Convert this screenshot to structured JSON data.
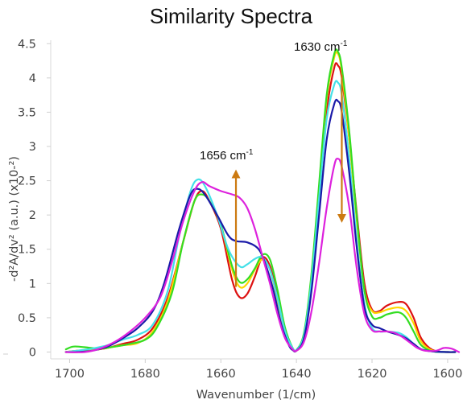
{
  "chart_data": {
    "type": "line",
    "title": "Similarity Spectra",
    "xlabel": "Wavenumber (1/cm)",
    "ylabel": "-d²A/dv² (a.u.) (x10-²)",
    "xlim": [
      1705,
      1597
    ],
    "ylim": [
      -0.1,
      4.55
    ],
    "x_reversed": true,
    "grid": false,
    "legend": "none",
    "xticks": [
      1700,
      1680,
      1660,
      1640,
      1620,
      1600
    ],
    "yticks": [
      0,
      0.5,
      1,
      1.5,
      2,
      2.5,
      3,
      3.5,
      4,
      4.5
    ],
    "ytick_labels": [
      "0",
      "0.5",
      "1",
      "1.5",
      "2",
      "2.5",
      "3",
      "3.5",
      "4",
      "4.5"
    ],
    "series": [
      {
        "color": "#dd1111",
        "points": [
          [
            1701,
            0
          ],
          [
            1698,
            0.02
          ],
          [
            1694,
            0.03
          ],
          [
            1690,
            0.06
          ],
          [
            1686,
            0.12
          ],
          [
            1682,
            0.18
          ],
          [
            1678,
            0.35
          ],
          [
            1674,
            0.8
          ],
          [
            1670,
            1.6
          ],
          [
            1667,
            2.2
          ],
          [
            1665,
            2.35
          ],
          [
            1663,
            2.2
          ],
          [
            1660,
            1.8
          ],
          [
            1657,
            1.05
          ],
          [
            1655,
            0.8
          ],
          [
            1653,
            0.85
          ],
          [
            1651,
            1.1
          ],
          [
            1649,
            1.38
          ],
          [
            1647,
            1.25
          ],
          [
            1645,
            0.8
          ],
          [
            1643,
            0.3
          ],
          [
            1641,
            0.05
          ],
          [
            1640,
            0.02
          ],
          [
            1638,
            0.2
          ],
          [
            1636,
            1.0
          ],
          [
            1634,
            2.2
          ],
          [
            1632,
            3.5
          ],
          [
            1630,
            4.15
          ],
          [
            1629,
            4.18
          ],
          [
            1628,
            4.0
          ],
          [
            1626,
            3.1
          ],
          [
            1624,
            2.0
          ],
          [
            1622,
            1.0
          ],
          [
            1620,
            0.62
          ],
          [
            1618,
            0.6
          ],
          [
            1616,
            0.68
          ],
          [
            1613,
            0.73
          ],
          [
            1611,
            0.7
          ],
          [
            1609,
            0.5
          ],
          [
            1607,
            0.2
          ],
          [
            1604,
            0.03
          ],
          [
            1600,
            0
          ],
          [
            1598,
            0
          ]
        ]
      },
      {
        "color": "#ffd500",
        "points": [
          [
            1701,
            0
          ],
          [
            1698,
            0.02
          ],
          [
            1694,
            0.03
          ],
          [
            1690,
            0.06
          ],
          [
            1686,
            0.1
          ],
          [
            1682,
            0.13
          ],
          [
            1678,
            0.3
          ],
          [
            1674,
            0.75
          ],
          [
            1670,
            1.6
          ],
          [
            1667,
            2.2
          ],
          [
            1665,
            2.3
          ],
          [
            1663,
            2.2
          ],
          [
            1660,
            1.85
          ],
          [
            1657,
            1.2
          ],
          [
            1655,
            0.95
          ],
          [
            1653,
            1.0
          ],
          [
            1651,
            1.2
          ],
          [
            1649,
            1.35
          ],
          [
            1647,
            1.2
          ],
          [
            1645,
            0.75
          ],
          [
            1643,
            0.3
          ],
          [
            1641,
            0.06
          ],
          [
            1640,
            0.03
          ],
          [
            1638,
            0.25
          ],
          [
            1636,
            1.1
          ],
          [
            1634,
            2.4
          ],
          [
            1632,
            3.7
          ],
          [
            1630,
            4.3
          ],
          [
            1629,
            4.35
          ],
          [
            1628,
            4.1
          ],
          [
            1626,
            3.1
          ],
          [
            1624,
            1.9
          ],
          [
            1622,
            0.9
          ],
          [
            1620,
            0.6
          ],
          [
            1618,
            0.58
          ],
          [
            1616,
            0.62
          ],
          [
            1613,
            0.65
          ],
          [
            1611,
            0.6
          ],
          [
            1609,
            0.42
          ],
          [
            1607,
            0.15
          ],
          [
            1604,
            0.02
          ],
          [
            1600,
            0
          ],
          [
            1598,
            0
          ]
        ]
      },
      {
        "color": "#33dd22",
        "points": [
          [
            1701,
            0.04
          ],
          [
            1699,
            0.08
          ],
          [
            1696,
            0.07
          ],
          [
            1692,
            0.05
          ],
          [
            1688,
            0.08
          ],
          [
            1684,
            0.12
          ],
          [
            1680,
            0.18
          ],
          [
            1677,
            0.35
          ],
          [
            1673,
            0.85
          ],
          [
            1670,
            1.6
          ],
          [
            1667,
            2.2
          ],
          [
            1665,
            2.3
          ],
          [
            1663,
            2.2
          ],
          [
            1660,
            1.85
          ],
          [
            1657,
            1.25
          ],
          [
            1655,
            1.02
          ],
          [
            1653,
            1.06
          ],
          [
            1651,
            1.22
          ],
          [
            1649,
            1.42
          ],
          [
            1647,
            1.35
          ],
          [
            1645,
            0.9
          ],
          [
            1643,
            0.35
          ],
          [
            1641,
            0.06
          ],
          [
            1640,
            0.03
          ],
          [
            1638,
            0.28
          ],
          [
            1636,
            1.15
          ],
          [
            1634,
            2.45
          ],
          [
            1632,
            3.75
          ],
          [
            1630,
            4.35
          ],
          [
            1629,
            4.38
          ],
          [
            1628,
            4.15
          ],
          [
            1626,
            3.2
          ],
          [
            1624,
            1.95
          ],
          [
            1622,
            0.9
          ],
          [
            1620,
            0.52
          ],
          [
            1618,
            0.5
          ],
          [
            1616,
            0.55
          ],
          [
            1613,
            0.58
          ],
          [
            1611,
            0.5
          ],
          [
            1609,
            0.3
          ],
          [
            1607,
            0.1
          ],
          [
            1604,
            0.01
          ],
          [
            1600,
            0
          ],
          [
            1598,
            0
          ]
        ]
      },
      {
        "color": "#44e0e8",
        "points": [
          [
            1701,
            0
          ],
          [
            1698,
            0.02
          ],
          [
            1694,
            0.05
          ],
          [
            1690,
            0.1
          ],
          [
            1686,
            0.18
          ],
          [
            1682,
            0.25
          ],
          [
            1678,
            0.4
          ],
          [
            1674,
            0.9
          ],
          [
            1671,
            1.7
          ],
          [
            1668,
            2.35
          ],
          [
            1666,
            2.52
          ],
          [
            1664,
            2.4
          ],
          [
            1661,
            2.0
          ],
          [
            1658,
            1.5
          ],
          [
            1655,
            1.25
          ],
          [
            1653,
            1.28
          ],
          [
            1651,
            1.36
          ],
          [
            1649,
            1.38
          ],
          [
            1647,
            1.2
          ],
          [
            1645,
            0.78
          ],
          [
            1643,
            0.3
          ],
          [
            1641,
            0.06
          ],
          [
            1640,
            0.03
          ],
          [
            1638,
            0.25
          ],
          [
            1636,
            1.05
          ],
          [
            1634,
            2.25
          ],
          [
            1632,
            3.4
          ],
          [
            1630,
            3.9
          ],
          [
            1629,
            3.93
          ],
          [
            1628,
            3.75
          ],
          [
            1626,
            2.8
          ],
          [
            1624,
            1.6
          ],
          [
            1622,
            0.7
          ],
          [
            1620,
            0.35
          ],
          [
            1618,
            0.3
          ],
          [
            1616,
            0.3
          ],
          [
            1613,
            0.28
          ],
          [
            1611,
            0.22
          ],
          [
            1609,
            0.12
          ],
          [
            1607,
            0.04
          ],
          [
            1604,
            0.01
          ],
          [
            1600,
            0
          ],
          [
            1598,
            0
          ]
        ]
      },
      {
        "color": "#1a1aa8",
        "points": [
          [
            1701,
            0
          ],
          [
            1698,
            0
          ],
          [
            1694,
            0.02
          ],
          [
            1690,
            0.08
          ],
          [
            1686,
            0.2
          ],
          [
            1682,
            0.35
          ],
          [
            1678,
            0.6
          ],
          [
            1675,
            1.0
          ],
          [
            1671,
            1.8
          ],
          [
            1668,
            2.3
          ],
          [
            1666,
            2.38
          ],
          [
            1664,
            2.28
          ],
          [
            1661,
            2.0
          ],
          [
            1658,
            1.7
          ],
          [
            1656,
            1.62
          ],
          [
            1653,
            1.6
          ],
          [
            1650,
            1.5
          ],
          [
            1648,
            1.25
          ],
          [
            1646,
            0.88
          ],
          [
            1644,
            0.4
          ],
          [
            1642,
            0.1
          ],
          [
            1641,
            0.03
          ],
          [
            1640,
            0.02
          ],
          [
            1638,
            0.2
          ],
          [
            1636,
            0.9
          ],
          [
            1634,
            2.0
          ],
          [
            1632,
            3.1
          ],
          [
            1630,
            3.62
          ],
          [
            1629,
            3.66
          ],
          [
            1628,
            3.5
          ],
          [
            1626,
            2.6
          ],
          [
            1624,
            1.5
          ],
          [
            1622,
            0.65
          ],
          [
            1620,
            0.4
          ],
          [
            1618,
            0.35
          ],
          [
            1616,
            0.3
          ],
          [
            1613,
            0.25
          ],
          [
            1611,
            0.2
          ],
          [
            1609,
            0.12
          ],
          [
            1607,
            0.04
          ],
          [
            1604,
            0.01
          ],
          [
            1600,
            0
          ],
          [
            1598,
            0
          ]
        ]
      },
      {
        "color": "#dd22dd",
        "points": [
          [
            1701,
            0
          ],
          [
            1696,
            0
          ],
          [
            1692,
            0.05
          ],
          [
            1688,
            0.15
          ],
          [
            1684,
            0.3
          ],
          [
            1680,
            0.5
          ],
          [
            1676,
            0.8
          ],
          [
            1673,
            1.3
          ],
          [
            1670,
            1.9
          ],
          [
            1667,
            2.35
          ],
          [
            1665,
            2.48
          ],
          [
            1663,
            2.42
          ],
          [
            1660,
            2.35
          ],
          [
            1657,
            2.3
          ],
          [
            1655,
            2.25
          ],
          [
            1653,
            2.1
          ],
          [
            1651,
            1.8
          ],
          [
            1649,
            1.4
          ],
          [
            1647,
            1.0
          ],
          [
            1645,
            0.55
          ],
          [
            1643,
            0.2
          ],
          [
            1641,
            0.04
          ],
          [
            1640,
            0.02
          ],
          [
            1638,
            0.15
          ],
          [
            1636,
            0.6
          ],
          [
            1634,
            1.3
          ],
          [
            1632,
            2.1
          ],
          [
            1630,
            2.72
          ],
          [
            1629,
            2.82
          ],
          [
            1628,
            2.7
          ],
          [
            1626,
            2.1
          ],
          [
            1624,
            1.2
          ],
          [
            1622,
            0.55
          ],
          [
            1620,
            0.32
          ],
          [
            1618,
            0.3
          ],
          [
            1616,
            0.3
          ],
          [
            1614,
            0.28
          ],
          [
            1612,
            0.22
          ],
          [
            1610,
            0.14
          ],
          [
            1608,
            0.06
          ],
          [
            1606,
            0.02
          ],
          [
            1603,
            0.02
          ],
          [
            1601,
            0.06
          ],
          [
            1599,
            0.05
          ],
          [
            1597,
            0
          ]
        ]
      }
    ],
    "annotations": [
      {
        "label": "1656",
        "unit": "cm",
        "exp": "-1",
        "x": 1656,
        "arrow_from": 0.95,
        "arrow_to": 2.6
      },
      {
        "label": "1630",
        "unit": "cm",
        "exp": "-1",
        "x": 1628,
        "arrow_from": 4.05,
        "arrow_to": 1.95
      }
    ]
  }
}
